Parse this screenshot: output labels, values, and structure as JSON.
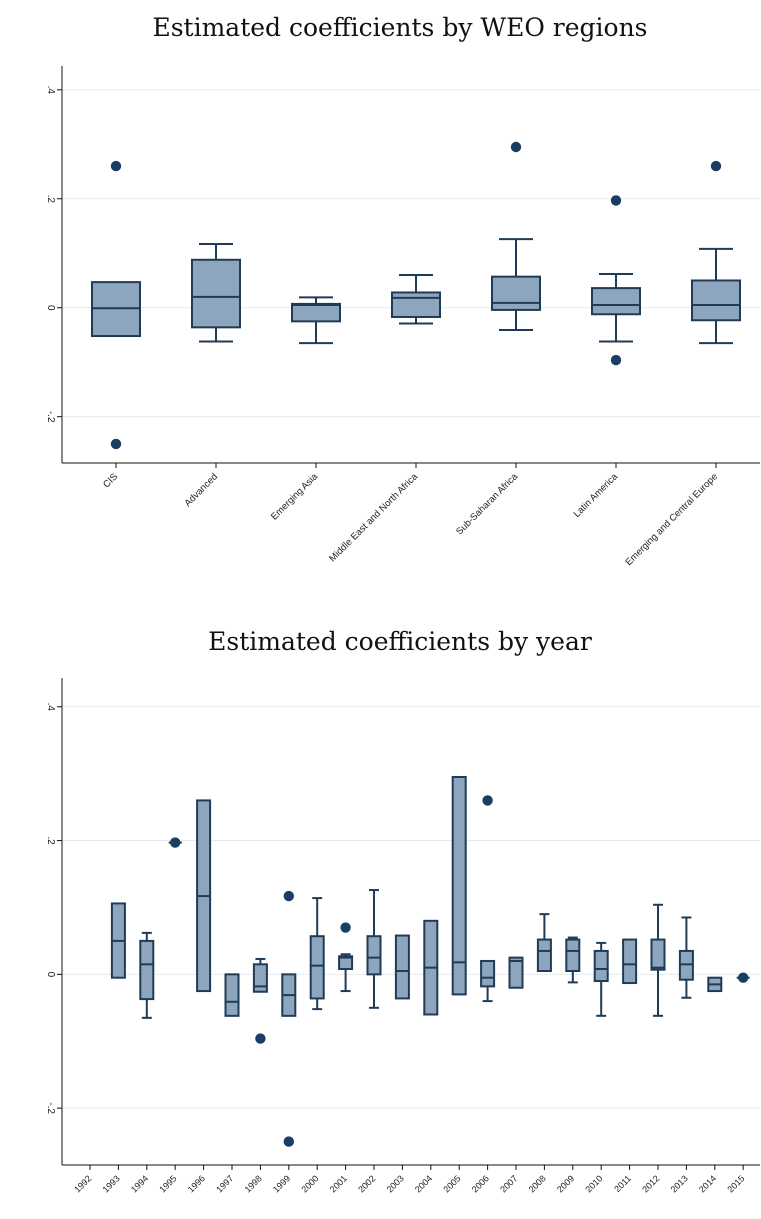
{
  "chart_data": [
    {
      "type": "box",
      "title": "Estimated coefficients by WEO regions",
      "xlabel": "",
      "ylabel": "",
      "ylim": [
        -0.285,
        0.44
      ],
      "yticks": [
        -0.2,
        0,
        0.2,
        0.4
      ],
      "ytick_labels": [
        "-.2",
        "0",
        ".2",
        ".4"
      ],
      "grid": true,
      "categories": [
        "CIS",
        "Advanced",
        "Emerging Asia",
        "Middle East and North Africa",
        "Sub-Saharan Africa",
        "Latin America",
        "Emerging and Central Europe"
      ],
      "boxes": [
        {
          "min": -0.052,
          "q1": -0.052,
          "median": -0.001,
          "q3": 0.047,
          "max": 0.047,
          "outliers": [
            0.26,
            -0.25
          ]
        },
        {
          "min": -0.062,
          "q1": -0.036,
          "median": 0.02,
          "q3": 0.088,
          "max": 0.117,
          "outliers": []
        },
        {
          "min": -0.065,
          "q1": -0.025,
          "median": 0.005,
          "q3": 0.007,
          "max": 0.019,
          "outliers": []
        },
        {
          "min": -0.029,
          "q1": -0.017,
          "median": 0.018,
          "q3": 0.028,
          "max": 0.06,
          "outliers": []
        },
        {
          "min": -0.041,
          "q1": -0.004,
          "median": 0.009,
          "q3": 0.057,
          "max": 0.126,
          "outliers": [
            0.295
          ]
        },
        {
          "min": -0.062,
          "q1": -0.012,
          "median": 0.005,
          "q3": 0.036,
          "max": 0.062,
          "outliers": [
            0.197,
            -0.096
          ]
        },
        {
          "min": -0.065,
          "q1": -0.023,
          "median": 0.005,
          "q3": 0.05,
          "max": 0.108,
          "outliers": [
            0.26
          ]
        }
      ]
    },
    {
      "type": "box",
      "title": "Estimated coefficients by year",
      "xlabel": "",
      "ylabel": "",
      "ylim": [
        -0.285,
        0.44
      ],
      "yticks": [
        -0.2,
        0,
        0.2,
        0.4
      ],
      "ytick_labels": [
        "-.2",
        "0",
        ".2",
        ".4"
      ],
      "grid": true,
      "categories": [
        "1992",
        "1993",
        "1994",
        "1995",
        "1996",
        "1997",
        "1998",
        "1999",
        "2000",
        "2001",
        "2002",
        "2003",
        "2004",
        "2005",
        "2006",
        "2007",
        "2008",
        "2009",
        "2010",
        "2011",
        "2012",
        "2013",
        "2014",
        "2015"
      ],
      "boxes": [
        null,
        {
          "min": -0.005,
          "q1": -0.005,
          "median": 0.05,
          "q3": 0.106,
          "max": 0.106,
          "outliers": []
        },
        {
          "min": -0.065,
          "q1": -0.037,
          "median": 0.015,
          "q3": 0.05,
          "max": 0.062,
          "outliers": []
        },
        {
          "min": 0.197,
          "q1": 0.197,
          "median": 0.197,
          "q3": 0.197,
          "max": 0.197,
          "outliers": [
            0.197
          ]
        },
        {
          "min": -0.025,
          "q1": -0.025,
          "median": 0.117,
          "q3": 0.26,
          "max": 0.26,
          "outliers": []
        },
        {
          "min": -0.062,
          "q1": -0.062,
          "median": -0.041,
          "q3": 0.0,
          "max": 0.0,
          "outliers": []
        },
        {
          "min": -0.026,
          "q1": -0.026,
          "median": -0.018,
          "q3": 0.015,
          "max": 0.023,
          "outliers": [
            -0.096
          ]
        },
        {
          "min": -0.062,
          "q1": -0.062,
          "median": -0.031,
          "q3": 0.0,
          "max": 0.0,
          "outliers": [
            0.117,
            -0.25
          ]
        },
        {
          "min": -0.052,
          "q1": -0.036,
          "median": 0.013,
          "q3": 0.057,
          "max": 0.114,
          "outliers": []
        },
        {
          "min": -0.025,
          "q1": 0.008,
          "median": 0.025,
          "q3": 0.027,
          "max": 0.03,
          "outliers": [
            0.07
          ]
        },
        {
          "min": -0.05,
          "q1": 0.0,
          "median": 0.025,
          "q3": 0.057,
          "max": 0.126,
          "outliers": []
        },
        {
          "min": -0.036,
          "q1": -0.036,
          "median": 0.005,
          "q3": 0.058,
          "max": 0.058,
          "outliers": []
        },
        {
          "min": -0.06,
          "q1": -0.06,
          "median": 0.01,
          "q3": 0.08,
          "max": 0.08,
          "outliers": []
        },
        {
          "min": -0.03,
          "q1": -0.03,
          "median": 0.018,
          "q3": 0.295,
          "max": 0.295,
          "outliers": []
        },
        {
          "min": -0.04,
          "q1": -0.018,
          "median": -0.005,
          "q3": 0.02,
          "max": 0.02,
          "outliers": [
            0.26
          ]
        },
        {
          "min": -0.02,
          "q1": -0.02,
          "median": 0.02,
          "q3": 0.025,
          "max": 0.025,
          "outliers": []
        },
        {
          "min": 0.005,
          "q1": 0.005,
          "median": 0.035,
          "q3": 0.052,
          "max": 0.09,
          "outliers": []
        },
        {
          "min": -0.012,
          "q1": 0.005,
          "median": 0.035,
          "q3": 0.052,
          "max": 0.055,
          "outliers": []
        },
        {
          "min": -0.062,
          "q1": -0.01,
          "median": 0.008,
          "q3": 0.035,
          "max": 0.047,
          "outliers": []
        },
        {
          "min": -0.013,
          "q1": -0.013,
          "median": 0.015,
          "q3": 0.052,
          "max": 0.052,
          "outliers": []
        },
        {
          "min": -0.062,
          "q1": 0.007,
          "median": 0.01,
          "q3": 0.052,
          "max": 0.104,
          "outliers": []
        },
        {
          "min": -0.035,
          "q1": -0.008,
          "median": 0.015,
          "q3": 0.035,
          "max": 0.085,
          "outliers": []
        },
        {
          "min": -0.025,
          "q1": -0.025,
          "median": -0.015,
          "q3": -0.005,
          "max": -0.005,
          "outliers": []
        },
        {
          "min": -0.005,
          "q1": -0.005,
          "median": -0.005,
          "q3": -0.005,
          "max": -0.005,
          "outliers": [
            -0.005
          ]
        }
      ]
    }
  ]
}
